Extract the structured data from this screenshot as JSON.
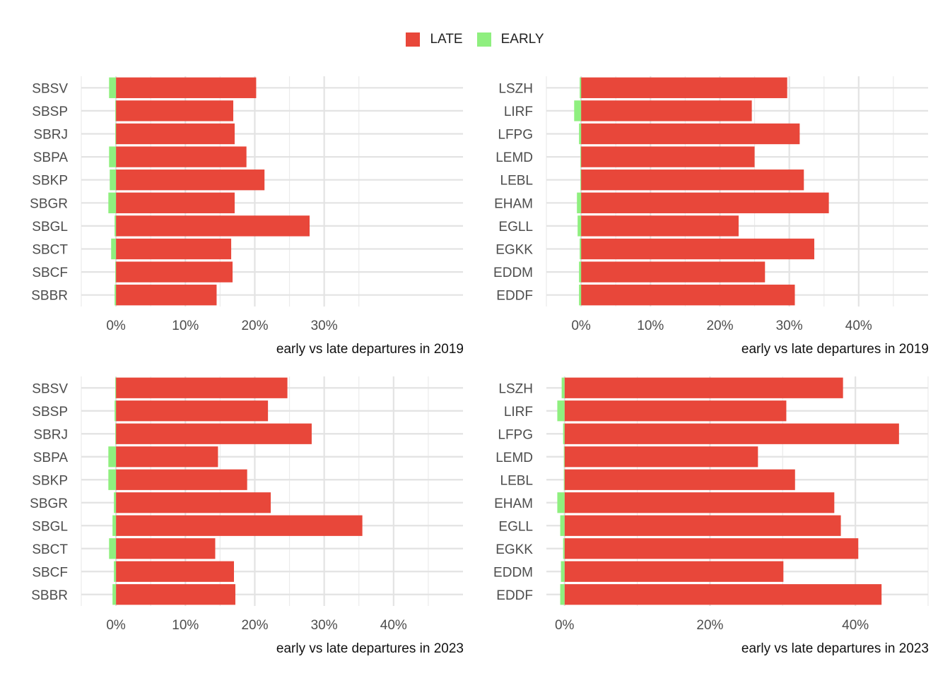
{
  "legend": {
    "items": [
      {
        "label": "LATE",
        "color": "#E8473A"
      },
      {
        "label": "EARLY",
        "color": "#8FEF7F"
      }
    ]
  },
  "chart_data": [
    {
      "type": "bar",
      "orientation": "horizontal",
      "xlabel": "early vs late departures in  2019",
      "xlim": [
        -5,
        50
      ],
      "xticks": [
        0,
        10,
        20,
        30
      ],
      "xtick_labels": [
        "0%",
        "10%",
        "20%",
        "30%"
      ],
      "categories": [
        "SBSV",
        "SBSP",
        "SBRJ",
        "SBPA",
        "SBKP",
        "SBGR",
        "SBGL",
        "SBCT",
        "SBCF",
        "SBBR"
      ],
      "series": [
        {
          "name": "LATE",
          "values": [
            20.2,
            16.9,
            17.1,
            18.8,
            21.4,
            17.1,
            27.9,
            16.6,
            16.8,
            14.5
          ]
        },
        {
          "name": "EARLY",
          "values": [
            -1.0,
            -0.1,
            -0.1,
            -1.0,
            -0.9,
            -1.1,
            -0.2,
            -0.7,
            -0.1,
            -0.2
          ]
        }
      ],
      "grid": true
    },
    {
      "type": "bar",
      "orientation": "horizontal",
      "xlabel": "early vs late departures in  2019",
      "xlim": [
        -5,
        50
      ],
      "xticks": [
        0,
        10,
        20,
        30,
        40
      ],
      "xtick_labels": [
        "0%",
        "10%",
        "20%",
        "30%",
        "40%"
      ],
      "categories": [
        "LSZH",
        "LIRF",
        "LFPG",
        "LEMD",
        "LEBL",
        "EHAM",
        "EGLL",
        "EGKK",
        "EDDM",
        "EDDF"
      ],
      "series": [
        {
          "name": "LATE",
          "values": [
            29.7,
            24.6,
            31.5,
            25.0,
            32.1,
            35.7,
            22.7,
            33.6,
            26.5,
            30.8
          ]
        },
        {
          "name": "EARLY",
          "values": [
            -0.2,
            -1.0,
            -0.3,
            -0.1,
            -0.1,
            -0.6,
            -0.5,
            -0.2,
            -0.3,
            -0.3
          ]
        }
      ],
      "grid": true
    },
    {
      "type": "bar",
      "orientation": "horizontal",
      "xlabel": "early vs late departures in  2023",
      "xlim": [
        -5,
        50
      ],
      "xticks": [
        0,
        10,
        20,
        30,
        40
      ],
      "xtick_labels": [
        "0%",
        "10%",
        "20%",
        "30%",
        "40%"
      ],
      "categories": [
        "SBSV",
        "SBSP",
        "SBRJ",
        "SBPA",
        "SBKP",
        "SBGR",
        "SBGL",
        "SBCT",
        "SBCF",
        "SBBR"
      ],
      "series": [
        {
          "name": "LATE",
          "values": [
            24.7,
            21.9,
            28.2,
            14.7,
            18.9,
            22.3,
            35.5,
            14.3,
            17.0,
            17.2
          ]
        },
        {
          "name": "EARLY",
          "values": [
            -0.1,
            -0.2,
            -0.1,
            -1.1,
            -1.1,
            -0.3,
            -0.5,
            -1.0,
            -0.3,
            -0.5
          ]
        }
      ],
      "grid": true
    },
    {
      "type": "bar",
      "orientation": "horizontal",
      "xlabel": "early vs late departures in  2023",
      "xlim": [
        -2.5,
        50
      ],
      "xticks": [
        0,
        20,
        40
      ],
      "xtick_labels": [
        "0%",
        "20%",
        "40%"
      ],
      "categories": [
        "LSZH",
        "LIRF",
        "LFPG",
        "LEMD",
        "LEBL",
        "EHAM",
        "EGLL",
        "EGKK",
        "EDDM",
        "EDDF"
      ],
      "series": [
        {
          "name": "LATE",
          "values": [
            38.3,
            30.5,
            46.0,
            26.6,
            31.7,
            37.1,
            38.0,
            40.4,
            30.1,
            43.6
          ]
        },
        {
          "name": "EARLY",
          "values": [
            -0.4,
            -1.0,
            -0.2,
            -0.1,
            -0.1,
            -1.0,
            -0.6,
            -0.2,
            -0.5,
            -0.6
          ]
        }
      ],
      "grid": true
    }
  ]
}
